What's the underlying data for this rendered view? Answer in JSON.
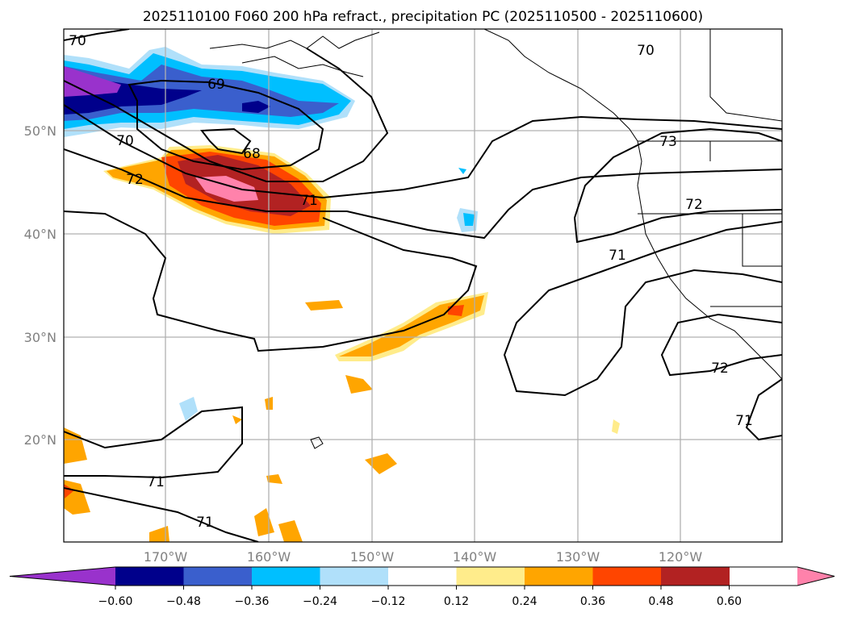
{
  "title": "2025110100 F060 200 hPa refract., precipitation PC (2025110500 - 2025110600)",
  "axes": {
    "lon_ticks": [
      "170°W",
      "160°W",
      "150°W",
      "140°W",
      "130°W",
      "120°W"
    ],
    "lat_ticks": [
      "50°N",
      "40°N",
      "30°N",
      "20°N"
    ],
    "lon_range": [
      -180,
      -110
    ],
    "lat_range": [
      10,
      60
    ]
  },
  "colorbar": {
    "ticks": [
      "−0.60",
      "−0.48",
      "−0.36",
      "−0.24",
      "−0.12",
      "0.12",
      "0.24",
      "0.36",
      "0.48",
      "0.60"
    ],
    "colors": [
      "#9932cc",
      "#00008b",
      "#3a5fcd",
      "#00bfff",
      "#b0e0fa",
      "#ffffff",
      "#ffec8b",
      "#ffa500",
      "#ff4500",
      "#b22222",
      "#ff82ab"
    ],
    "extend": "both"
  },
  "contour_labels": {
    "l70a": "70",
    "l69": "69",
    "l70b": "70",
    "l68": "68",
    "l72a": "72",
    "l71a": "71",
    "l70c": "70",
    "l73": "73",
    "l72b": "72",
    "l71b": "71",
    "l72c": "72",
    "l71c": "71",
    "l71d": "71",
    "l71e": "71"
  }
}
